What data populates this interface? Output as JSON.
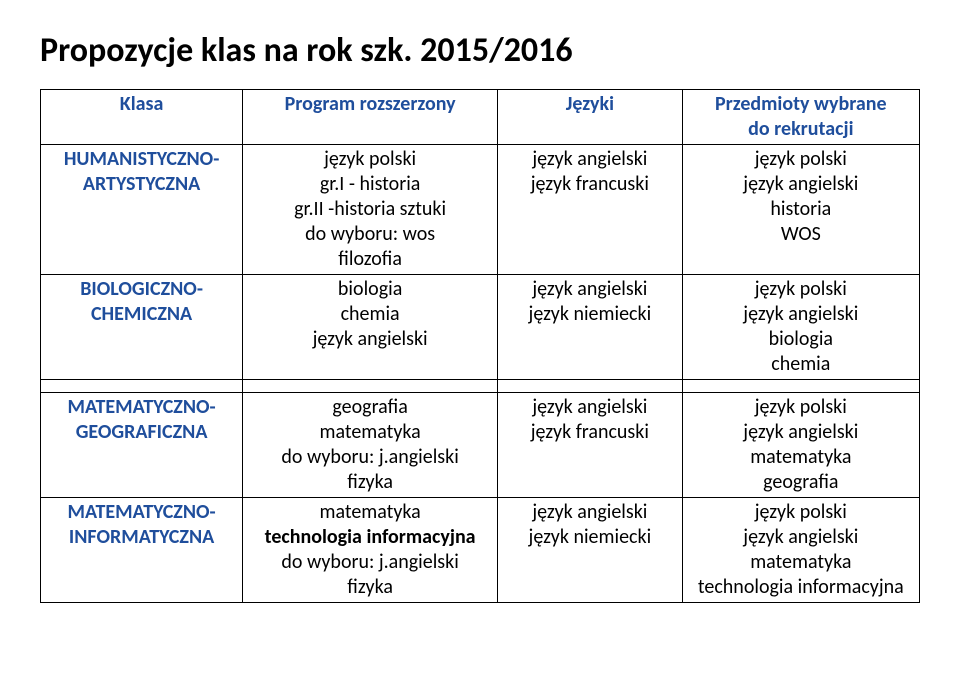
{
  "title": "Propozycje klas na rok szk. 2015/2016",
  "headers": {
    "klasa": "Klasa",
    "program": "Program rozszerzony",
    "jezyki": "Języki",
    "wybrane_l1": "Przedmioty wybrane",
    "wybrane_l2": "do rekrutacji"
  },
  "rows": [
    {
      "klasa_l1": "HUMANISTYCZNO-",
      "klasa_l2": "ARTYSTYCZNA",
      "program": [
        {
          "text": "język polski",
          "bold": false
        },
        {
          "text": "gr.I - historia",
          "bold": false
        },
        {
          "text": "gr.II -historia sztuki",
          "bold": false
        },
        {
          "text": "do wyboru: wos",
          "bold": false
        },
        {
          "text": "filozofia",
          "bold": false
        }
      ],
      "jezyki": [
        "język angielski",
        "język francuski"
      ],
      "wybrane": [
        "język polski",
        "język angielski",
        "historia",
        "WOS"
      ]
    },
    {
      "klasa_l1": "BIOLOGICZNO-",
      "klasa_l2": "CHEMICZNA",
      "program": [
        {
          "text": "biologia",
          "bold": false
        },
        {
          "text": "chemia",
          "bold": false
        },
        {
          "text": "język angielski",
          "bold": false
        }
      ],
      "jezyki": [
        "język angielski",
        "język niemiecki"
      ],
      "wybrane": [
        "język polski",
        "język angielski",
        "biologia",
        "chemia"
      ]
    },
    {
      "klasa_l1": "MATEMATYCZNO-",
      "klasa_l2": "GEOGRAFICZNA",
      "program": [
        {
          "text": "geografia",
          "bold": false
        },
        {
          "text": "matematyka",
          "bold": false
        },
        {
          "text": "do wyboru: j.angielski",
          "bold": false
        },
        {
          "text": "fizyka",
          "bold": false
        }
      ],
      "jezyki": [
        "język angielski",
        "język francuski"
      ],
      "wybrane": [
        "język polski",
        "język angielski",
        "matematyka",
        "geografia"
      ]
    },
    {
      "klasa_l1": "MATEMATYCZNO-",
      "klasa_l2": "INFORMATYCZNA",
      "program": [
        {
          "text": "matematyka",
          "bold": false
        },
        {
          "text": "technologia informacyjna",
          "bold": true
        },
        {
          "text": "do wyboru: j.angielski",
          "bold": false
        },
        {
          "text": "fizyka",
          "bold": false
        }
      ],
      "jezyki": [
        "język angielski",
        "język niemiecki"
      ],
      "wybrane": [
        {
          "text": "język polski",
          "bold": false
        },
        {
          "text": "język angielski",
          "bold": false
        },
        {
          "text": "matematyka",
          "bold": false
        },
        {
          "text": "technologia informacyjna",
          "bold": true
        }
      ]
    }
  ]
}
